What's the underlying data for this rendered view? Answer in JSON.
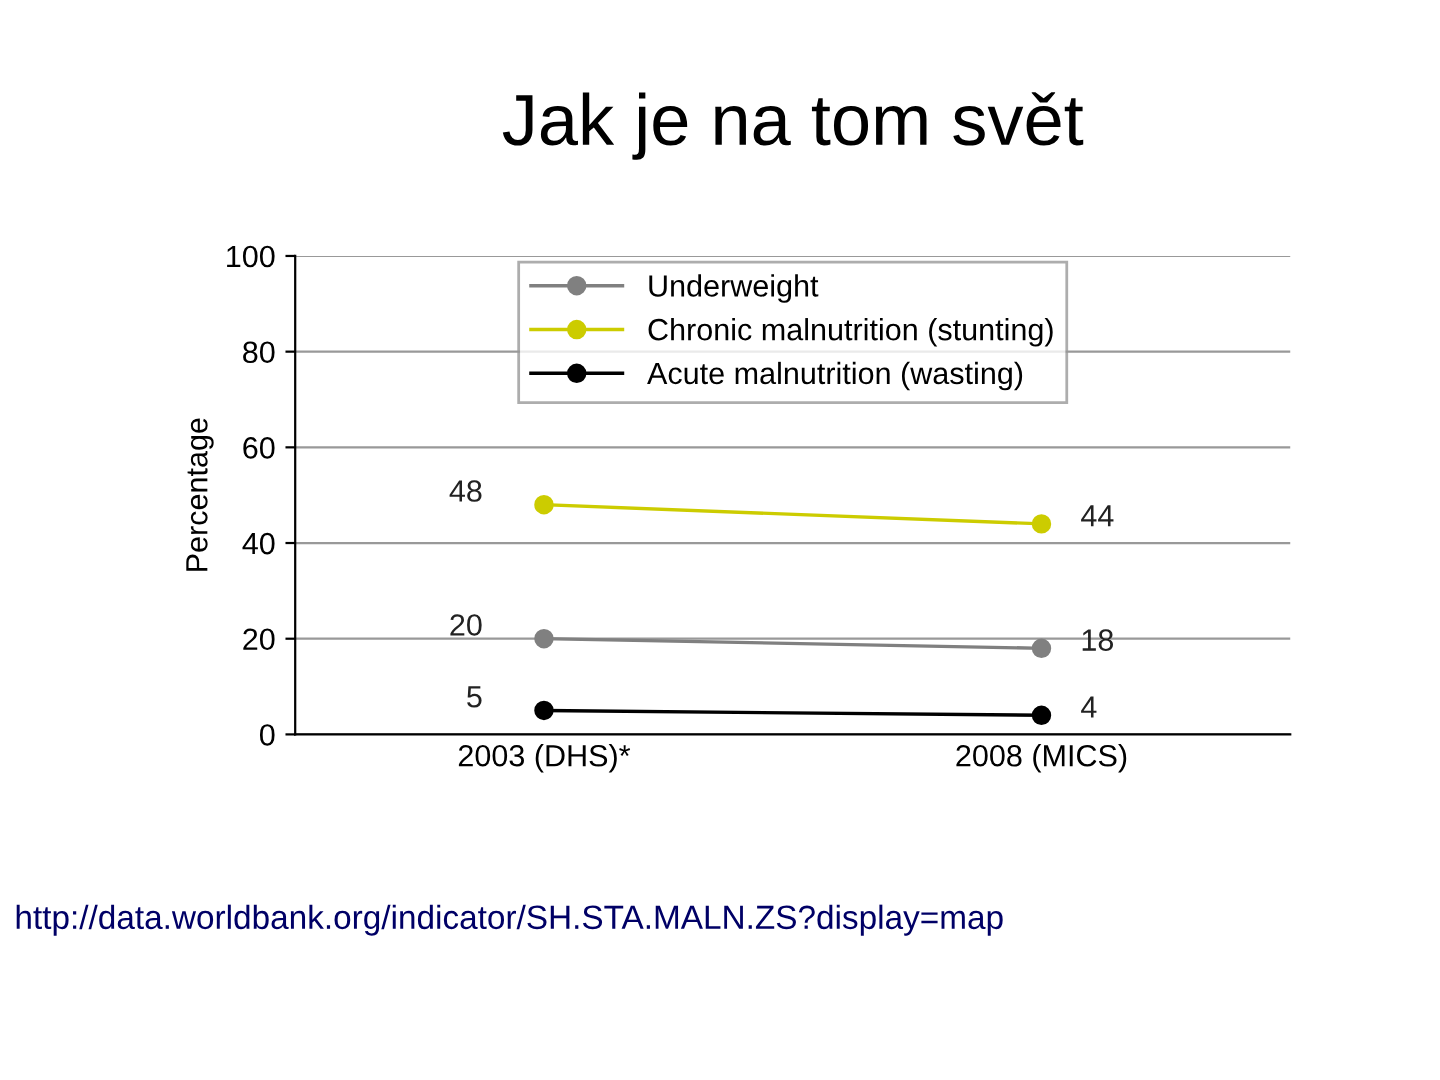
{
  "chart_data": {
    "type": "line",
    "title": "Jak je na tom svět",
    "ylabel": "Percentage",
    "categories": [
      "2003 (DHS)*",
      "2008 (MICS)"
    ],
    "series": [
      {
        "name": "Underweight",
        "color": "#808080",
        "values": [
          20,
          18
        ]
      },
      {
        "name": "Chronic malnutrition (stunting)",
        "color": "#cccc00",
        "values": [
          48,
          44
        ]
      },
      {
        "name": "Acute malnutrition (wasting)",
        "color": "#000000",
        "values": [
          5,
          4
        ]
      }
    ],
    "ylim": [
      0,
      100
    ],
    "yticks": [
      0,
      20,
      40,
      60,
      80,
      100
    ],
    "grid": "y",
    "legend": "top",
    "marker": "circle",
    "line_style": "solid",
    "data_labels": true,
    "annotations": [
      "http://data.worldbank.org/indicator/SH.STA.MALN.ZS?display=map"
    ]
  }
}
